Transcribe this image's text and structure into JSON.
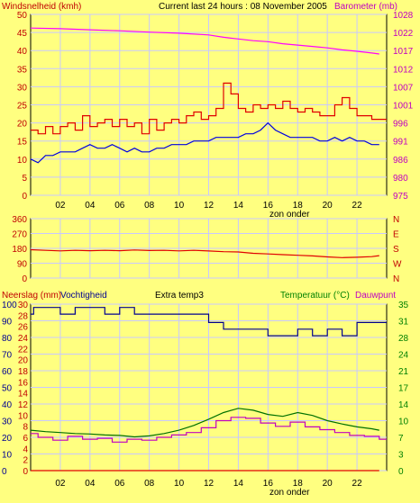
{
  "colors": {
    "background": "#ffff80",
    "plot_bg": "#ffff80",
    "grid": "#c8c8ff",
    "frame": "#000000",
    "wind": "#e00000",
    "wind_avg": "#0000e0",
    "barometer": "#ff00ff",
    "direction": "#e00000",
    "rain": "#e00000",
    "humidity": "#000090",
    "temperature": "#007000",
    "dewpoint": "#c000c0",
    "green_text": "#008000",
    "black_text": "#000000",
    "red_text": "#c00000"
  },
  "header": {
    "wind_label": "Windsnelheid (kmh)",
    "title": "Current last 24 hours : 08 November 2005",
    "baro_label": "Barometer (mb)"
  },
  "panel3_header": {
    "rain_label": "Neerslag (mm)",
    "humidity_label": "Vochtigheid",
    "extra_label": "Extra temp3",
    "temp_label": "Temperatuur (°C)",
    "dew_label": "Dauwpunt"
  },
  "x_ticks": [
    "02",
    "04",
    "06",
    "08",
    "10",
    "12",
    "14",
    "16",
    "18",
    "20",
    "22"
  ],
  "sunset_label": "zon onder",
  "chart_data": [
    {
      "type": "line",
      "title": "Current last 24 hours : 08 November 2005",
      "x_range": [
        0,
        24
      ],
      "y_left": {
        "label": "Windsnelheid (kmh)",
        "range": [
          0,
          50
        ],
        "ticks": [
          "0",
          "5",
          "10",
          "15",
          "20",
          "25",
          "30",
          "35",
          "40",
          "45",
          "50"
        ]
      },
      "y_right": {
        "label": "Barometer (mb)",
        "range": [
          975,
          1028
        ],
        "ticks": [
          "975",
          "980",
          "986",
          "991",
          "996",
          "1001",
          "1007",
          "1012",
          "1017",
          "1022",
          "1028"
        ]
      },
      "series": [
        {
          "name": "Windsnelheid (kmh)",
          "x": [
            0,
            0.5,
            1,
            1.5,
            2,
            2.5,
            3,
            3.5,
            4,
            4.5,
            5,
            5.5,
            6,
            6.5,
            7,
            7.5,
            8,
            8.5,
            9,
            9.5,
            10,
            10.5,
            11,
            11.5,
            12,
            12.5,
            13,
            13.5,
            14,
            14.5,
            15,
            15.5,
            16,
            16.5,
            17,
            17.5,
            18,
            18.5,
            19,
            19.5,
            20,
            20.5,
            21,
            21.5,
            22,
            22.5,
            23,
            23.5
          ],
          "values": [
            18,
            17,
            19,
            17,
            19,
            20,
            18,
            22,
            19,
            20,
            21,
            19,
            21,
            19,
            20,
            17,
            21,
            18,
            20,
            21,
            20,
            22,
            23,
            21,
            22,
            24,
            31,
            28,
            24,
            23,
            25,
            24,
            25,
            24,
            26,
            24,
            23,
            24,
            23,
            22,
            22,
            25,
            27,
            24,
            22,
            22,
            21,
            21
          ]
        },
        {
          "name": "Windsnelheid gem.",
          "x": [
            0,
            0.5,
            1,
            1.5,
            2,
            2.5,
            3,
            3.5,
            4,
            4.5,
            5,
            5.5,
            6,
            6.5,
            7,
            7.5,
            8,
            8.5,
            9,
            9.5,
            10,
            10.5,
            11,
            11.5,
            12,
            12.5,
            13,
            13.5,
            14,
            14.5,
            15,
            15.5,
            16,
            16.5,
            17,
            17.5,
            18,
            18.5,
            19,
            19.5,
            20,
            20.5,
            21,
            21.5,
            22,
            22.5,
            23,
            23.5
          ],
          "values": [
            10,
            9,
            11,
            11,
            12,
            12,
            12,
            13,
            14,
            13,
            13,
            14,
            13,
            12,
            13,
            12,
            12,
            13,
            13,
            14,
            14,
            14,
            15,
            15,
            15,
            16,
            16,
            16,
            16,
            17,
            17,
            18,
            20,
            18,
            17,
            16,
            16,
            16,
            16,
            15,
            15,
            16,
            15,
            16,
            15,
            15,
            14,
            14
          ]
        },
        {
          "name": "Barometer (mb)",
          "x": [
            0,
            2,
            4,
            6,
            8,
            10,
            12,
            13,
            14,
            15,
            16,
            17,
            18,
            19,
            20,
            21,
            22,
            23,
            23.5
          ],
          "values": [
            1024,
            1023.8,
            1023.5,
            1023.2,
            1022.8,
            1022.5,
            1022,
            1021.3,
            1020.8,
            1020.3,
            1020,
            1019.4,
            1019,
            1018.6,
            1018.2,
            1017.6,
            1017.2,
            1016.7,
            1016.4
          ]
        }
      ]
    },
    {
      "type": "line",
      "y_left": {
        "range": [
          0,
          360
        ],
        "ticks": [
          "0",
          "90",
          "180",
          "270",
          "360"
        ]
      },
      "y_right_labels": [
        "N",
        "W",
        "S",
        "E",
        "N"
      ],
      "series": [
        {
          "name": "Windrichting",
          "x": [
            0,
            1,
            2,
            3,
            4,
            5,
            6,
            7,
            8,
            9,
            10,
            11,
            12,
            13,
            14,
            15,
            16,
            17,
            18,
            19,
            20,
            21,
            22,
            23,
            23.5
          ],
          "values": [
            172,
            168,
            165,
            168,
            166,
            168,
            166,
            170,
            167,
            168,
            165,
            168,
            164,
            160,
            158,
            150,
            146,
            142,
            138,
            134,
            128,
            124,
            126,
            130,
            136
          ]
        }
      ]
    },
    {
      "type": "line",
      "y_left_humidity": {
        "label": "Vochtigheid",
        "range": [
          0,
          100
        ],
        "ticks": [
          "0",
          "10",
          "20",
          "30",
          "40",
          "50",
          "60",
          "70",
          "80",
          "90",
          "100"
        ]
      },
      "y_left_rain": {
        "label": "Neerslag (mm)",
        "range": [
          0,
          30
        ],
        "ticks": [
          "0",
          "2",
          "4",
          "6",
          "8",
          "10",
          "12",
          "14",
          "16",
          "18",
          "20",
          "22",
          "24",
          "26",
          "28",
          "30"
        ]
      },
      "y_right": {
        "label": "Temperatuur (°C)",
        "range": [
          0,
          35
        ],
        "ticks": [
          "0",
          "3",
          "7",
          "10",
          "14",
          "17",
          "21",
          "24",
          "28",
          "31",
          "35"
        ]
      },
      "series": [
        {
          "name": "Vochtigheid",
          "x": [
            0,
            0.2,
            1,
            2,
            3,
            4,
            5,
            6,
            7,
            8,
            9,
            10,
            11,
            12,
            13,
            14,
            15,
            16,
            17,
            18,
            19,
            20,
            21,
            22,
            23,
            23.5
          ],
          "values": [
            94,
            98,
            98,
            94,
            98,
            98,
            94,
            98,
            94,
            94,
            94,
            94,
            94,
            89,
            85,
            85,
            85,
            81,
            81,
            85,
            81,
            85,
            81,
            89,
            89,
            89
          ]
        },
        {
          "name": "Temperatuur (°C)",
          "x": [
            0,
            1,
            2,
            3,
            4,
            5,
            6,
            7,
            8,
            9,
            10,
            11,
            12,
            13,
            14,
            15,
            16,
            17,
            18,
            19,
            20,
            21,
            22,
            23,
            23.5
          ],
          "values": [
            8.5,
            8.2,
            8.0,
            7.8,
            7.7,
            7.5,
            7.4,
            7.1,
            7.3,
            7.8,
            8.5,
            9.5,
            10.8,
            12.2,
            13.1,
            12.7,
            11.8,
            11.4,
            12.2,
            11.6,
            10.5,
            9.8,
            9.2,
            8.8,
            8.5
          ]
        },
        {
          "name": "Dauwpunt",
          "x": [
            0,
            0.5,
            1.5,
            2.5,
            3.5,
            4.5,
            5.5,
            6.5,
            7.5,
            8.5,
            9.5,
            10.5,
            11.5,
            12.5,
            13.5,
            14.5,
            15.5,
            16.5,
            17.5,
            18.5,
            19.5,
            20.5,
            21.5,
            22.5,
            23.5
          ],
          "values": [
            7.8,
            7.0,
            6.4,
            7.2,
            6.6,
            6.8,
            6.0,
            6.6,
            6.4,
            7.0,
            7.5,
            8.0,
            9.0,
            10.5,
            11.2,
            11.0,
            10.0,
            9.3,
            10.2,
            9.2,
            8.6,
            8.0,
            7.4,
            7.2,
            6.6
          ]
        },
        {
          "name": "Neerslag (mm)",
          "x": [
            0,
            23.5
          ],
          "values": [
            0,
            0
          ]
        }
      ]
    }
  ]
}
